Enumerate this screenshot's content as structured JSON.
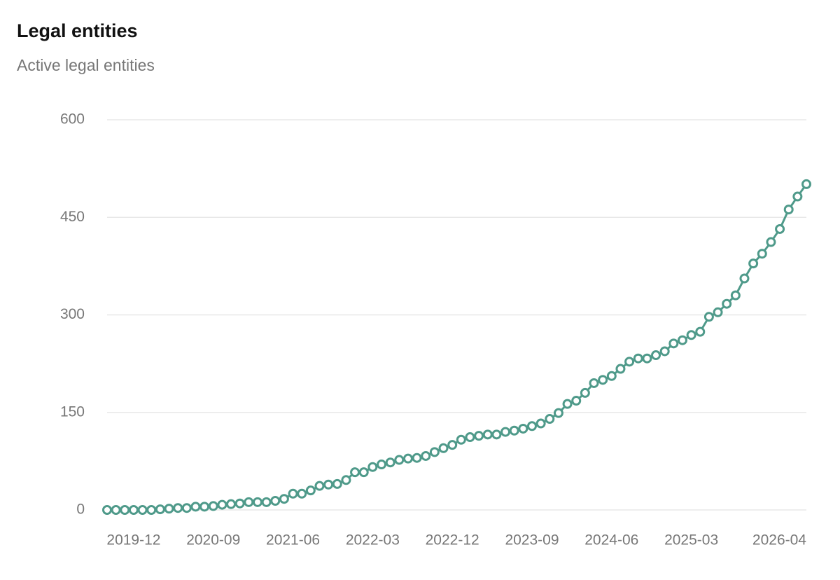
{
  "chart_data": {
    "type": "line",
    "title": "Legal entities",
    "subtitle": "Active legal entities",
    "categories": [
      null,
      null,
      null,
      "2019-12",
      null,
      null,
      null,
      null,
      null,
      null,
      null,
      null,
      "2020-09",
      null,
      null,
      null,
      null,
      null,
      null,
      null,
      null,
      "2021-06",
      null,
      null,
      null,
      null,
      null,
      null,
      null,
      null,
      "2022-03",
      null,
      null,
      null,
      null,
      null,
      null,
      null,
      null,
      "2022-12",
      null,
      null,
      null,
      null,
      null,
      null,
      null,
      null,
      "2023-09",
      null,
      null,
      null,
      null,
      null,
      null,
      null,
      null,
      "2024-06",
      null,
      null,
      null,
      null,
      null,
      null,
      null,
      null,
      "2025-03",
      null,
      null,
      null,
      null,
      null,
      null,
      null,
      null,
      null,
      null,
      null,
      null,
      "2026-04"
    ],
    "series": [
      {
        "name": "Active legal entities",
        "color": "#4f9a8a",
        "values": [
          0,
          0,
          0,
          0,
          0,
          0,
          1,
          2,
          3,
          3,
          5,
          5,
          6,
          8,
          9,
          10,
          12,
          12,
          12,
          14,
          17,
          25,
          25,
          30,
          37,
          39,
          40,
          46,
          58,
          58,
          66,
          70,
          73,
          77,
          79,
          80,
          83,
          89,
          95,
          100,
          108,
          112,
          114,
          116,
          116,
          120,
          122,
          125,
          129,
          133,
          140,
          149,
          163,
          168,
          180,
          195,
          200,
          206,
          217,
          228,
          233,
          233,
          238,
          244,
          256,
          261,
          269,
          274,
          297,
          304,
          317,
          330,
          356,
          379,
          394,
          412,
          432,
          462,
          482,
          501
        ]
      }
    ],
    "ylim": [
      0,
      600
    ],
    "yticks": [
      0,
      150,
      300,
      450,
      600
    ],
    "grid": true
  }
}
